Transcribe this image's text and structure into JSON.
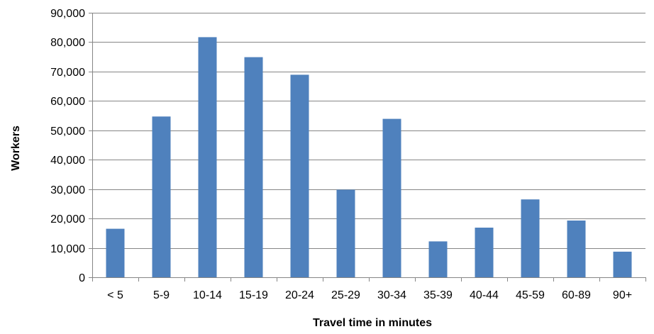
{
  "chart_data": {
    "type": "bar",
    "categories": [
      "< 5",
      "5-9",
      "10-14",
      "15-19",
      "20-24",
      "25-29",
      "30-34",
      "35-39",
      "40-44",
      "45-59",
      "60-89",
      "90+"
    ],
    "values": [
      16500,
      54700,
      81700,
      74900,
      68900,
      29800,
      53900,
      12200,
      16900,
      26500,
      19300,
      8700
    ],
    "title": "",
    "xlabel": "Travel time in minutes",
    "ylabel": "Workers",
    "ylim": [
      0,
      90000
    ],
    "yticks": [
      0,
      10000,
      20000,
      30000,
      40000,
      50000,
      60000,
      70000,
      80000,
      90000
    ],
    "ytick_labels": [
      "0",
      "10,000",
      "20,000",
      "30,000",
      "40,000",
      "50,000",
      "60,000",
      "70,000",
      "80,000",
      "90,000"
    ],
    "grid": true,
    "legend": "none",
    "bar_color": "#4f81bd",
    "grid_color": "#868686"
  }
}
